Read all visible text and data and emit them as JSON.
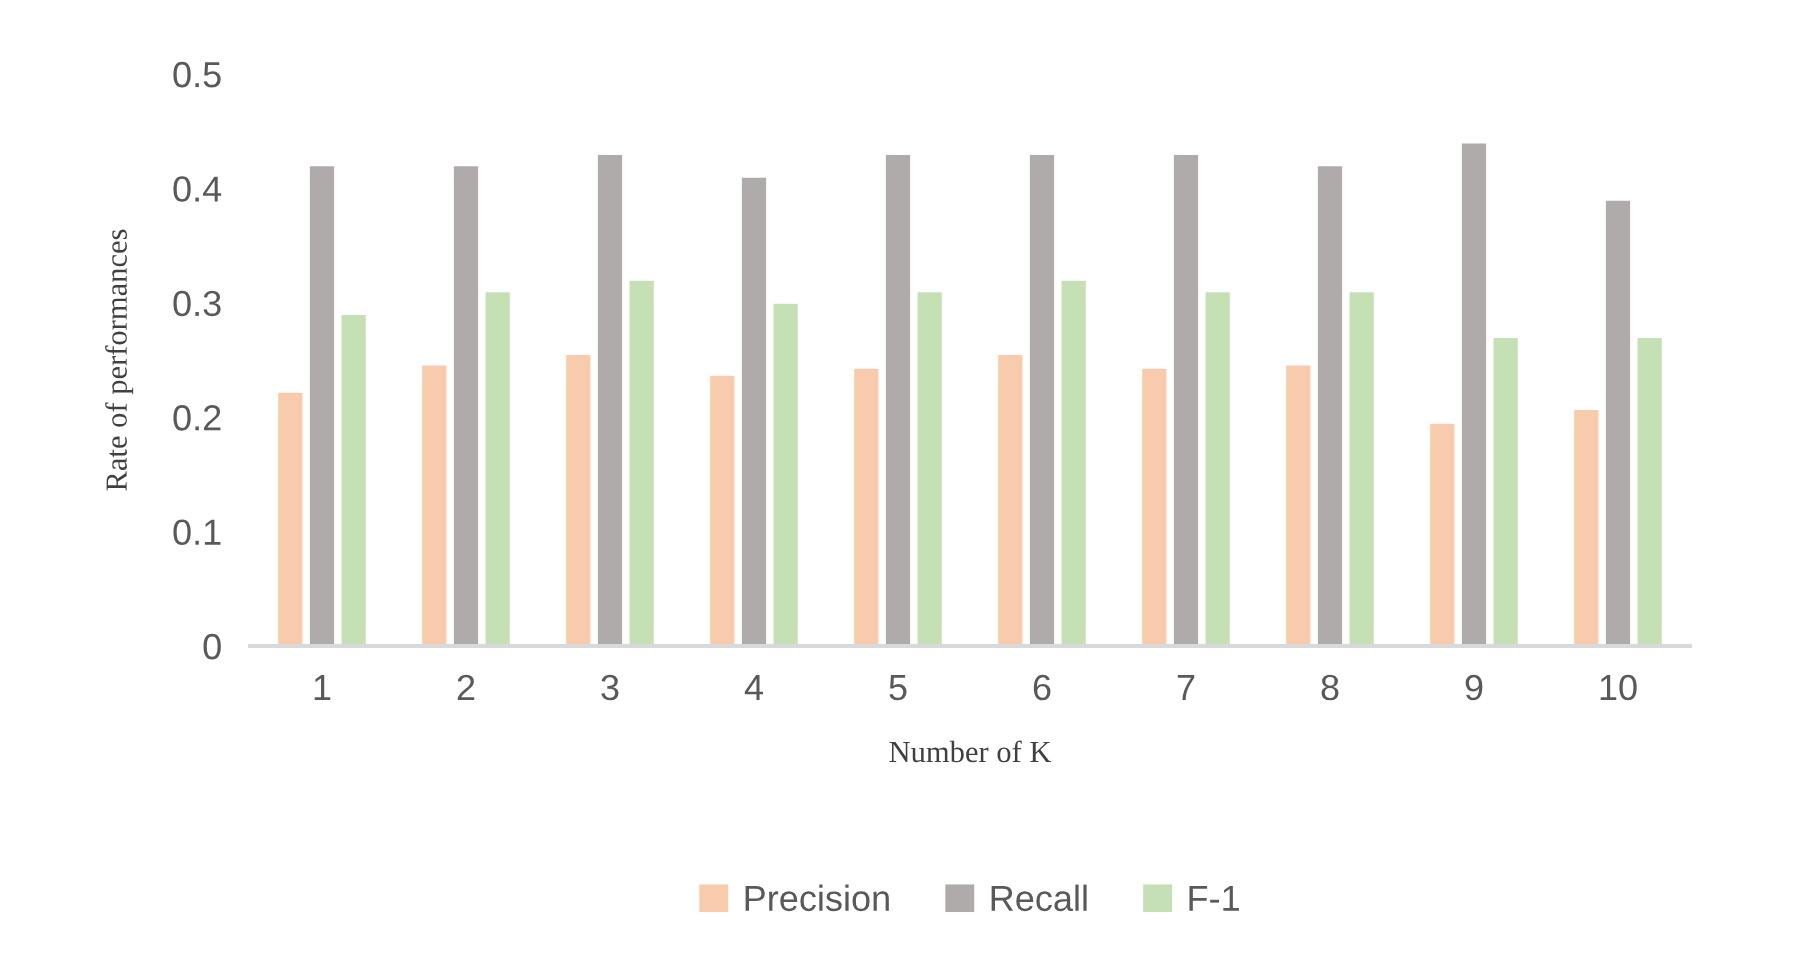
{
  "chart_data": {
    "type": "bar",
    "xlabel": "Number of K",
    "ylabel": "Rate of performances",
    "categories": [
      "1",
      "2",
      "3",
      "4",
      "5",
      "6",
      "7",
      "8",
      "9",
      "10"
    ],
    "series": [
      {
        "name": "Precision",
        "color": "#f8cbad",
        "values": [
          0.222,
          0.246,
          0.255,
          0.237,
          0.243,
          0.255,
          0.243,
          0.246,
          0.195,
          0.207
        ]
      },
      {
        "name": "Recall",
        "color": "#afabab",
        "values": [
          0.42,
          0.42,
          0.43,
          0.41,
          0.43,
          0.43,
          0.43,
          0.42,
          0.44,
          0.39
        ]
      },
      {
        "name": "F-1",
        "color": "#c5e0b4",
        "values": [
          0.29,
          0.31,
          0.32,
          0.3,
          0.31,
          0.32,
          0.31,
          0.31,
          0.27,
          0.27
        ]
      }
    ],
    "ylim": [
      0,
      0.5
    ],
    "yticks": [
      0,
      0.1,
      0.2,
      0.3,
      0.4,
      0.5
    ],
    "grid": false,
    "legend": "bottom"
  }
}
